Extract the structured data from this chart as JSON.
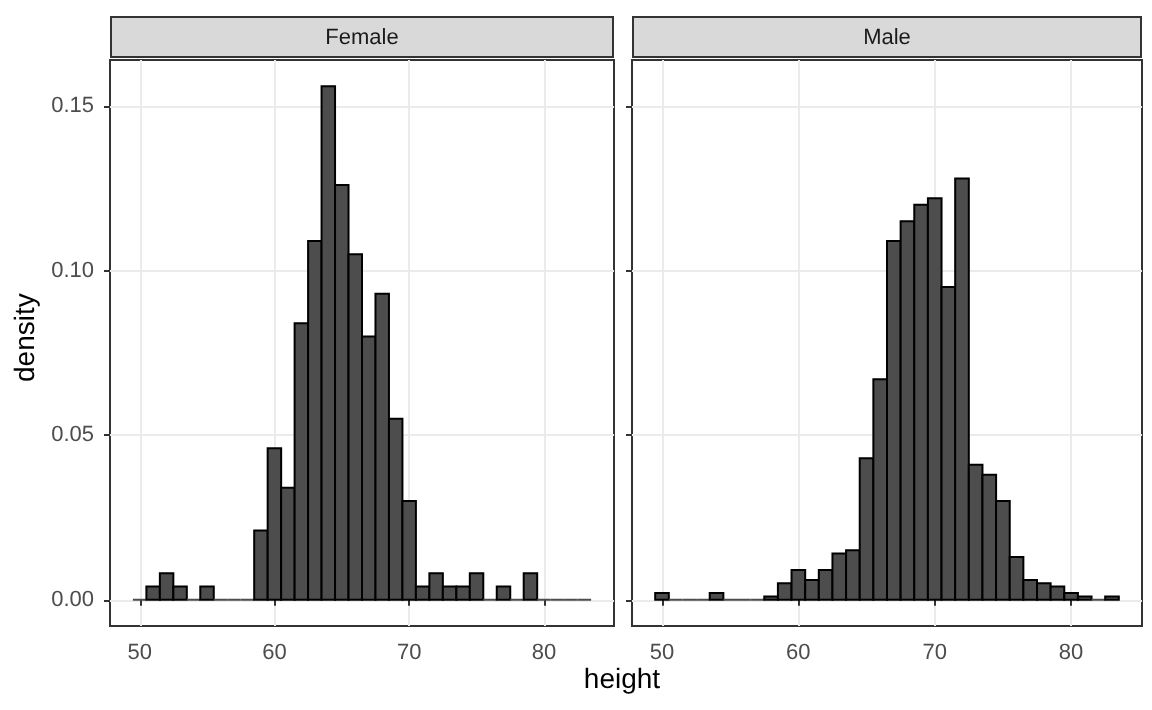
{
  "chart_data": [
    {
      "type": "histogram",
      "title": "Female",
      "xlabel": "height",
      "ylabel": "density",
      "color": "#4d4d4d",
      "bins": [
        49.5,
        50.5,
        51.5,
        52.5,
        53.5,
        54.5,
        55.5,
        56.5,
        57.5,
        58.5,
        59.5,
        60.5,
        61.5,
        62.5,
        63.5,
        64.5,
        65.5,
        66.5,
        67.5,
        68.5,
        69.5,
        70.5,
        71.5,
        72.5,
        73.5,
        74.5,
        75.5,
        76.5,
        77.5,
        78.5,
        79.5,
        80.5,
        81.5,
        82.5,
        83.5
      ],
      "values": [
        0,
        0.004,
        0.008,
        0.004,
        0,
        0.004,
        0,
        0,
        0,
        0.021,
        0.046,
        0.034,
        0.084,
        0.109,
        0.156,
        0.126,
        0.105,
        0.08,
        0.093,
        0.055,
        0.03,
        0.004,
        0.008,
        0.004,
        0.004,
        0.008,
        0,
        0.004,
        0,
        0.008,
        0,
        0,
        0,
        0
      ],
      "xlim": [
        47.8,
        85.2
      ],
      "xticks": [
        50,
        60,
        70,
        80
      ],
      "ylim": [
        -0.008,
        0.164
      ],
      "yticks": [
        {
          "value": 0,
          "label": "0.00"
        },
        {
          "value": 0.05,
          "label": "0.05"
        },
        {
          "value": 0.1,
          "label": "0.10"
        },
        {
          "value": 0.15,
          "label": "0.15"
        }
      ],
      "grid": true
    },
    {
      "type": "histogram",
      "title": "Male",
      "color": "#4d4d4d",
      "bins": [
        49.5,
        50.5,
        51.5,
        52.5,
        53.5,
        54.5,
        55.5,
        56.5,
        57.5,
        58.5,
        59.5,
        60.5,
        61.5,
        62.5,
        63.5,
        64.5,
        65.5,
        66.5,
        67.5,
        68.5,
        69.5,
        70.5,
        71.5,
        72.5,
        73.5,
        74.5,
        75.5,
        76.5,
        77.5,
        78.5,
        79.5,
        80.5,
        81.5,
        82.5,
        83.5
      ],
      "values": [
        0.002,
        0,
        0,
        0,
        0.002,
        0,
        0,
        0,
        0.001,
        0.005,
        0.009,
        0.006,
        0.009,
        0.014,
        0.015,
        0.043,
        0.067,
        0.109,
        0.115,
        0.12,
        0.122,
        0.095,
        0.128,
        0.041,
        0.038,
        0.03,
        0.013,
        0.006,
        0.005,
        0.004,
        0.002,
        0.001,
        0,
        0.001
      ],
      "xlim": [
        47.8,
        85.2
      ],
      "xticks": [
        50,
        60,
        70,
        80
      ],
      "ylim": [
        -0.008,
        0.164
      ],
      "yticks": [
        {
          "value": 0,
          "label": null
        },
        {
          "value": 0.05,
          "label": null
        },
        {
          "value": 0.1,
          "label": null
        },
        {
          "value": 0.15,
          "label": null
        }
      ],
      "grid": true,
      "tick_labels": "x"
    }
  ]
}
